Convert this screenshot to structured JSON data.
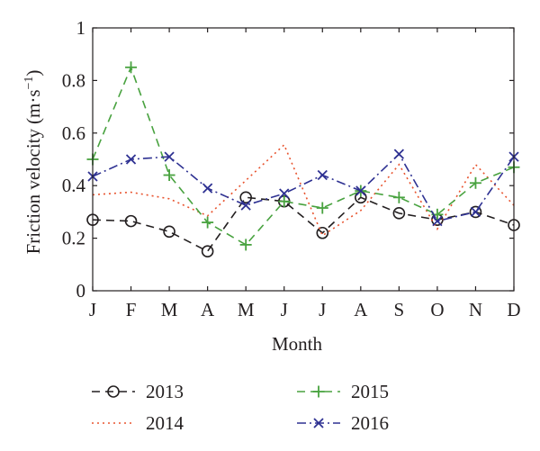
{
  "chart_data": {
    "type": "line",
    "categories": [
      "J",
      "F",
      "M",
      "A",
      "M",
      "J",
      "J",
      "A",
      "S",
      "O",
      "N",
      "D"
    ],
    "xlabel": "Month",
    "ylabel": "Friction velocity",
    "ylabel_unit_prefix": "(m·s",
    "ylabel_unit_exp": "−1",
    "ylabel_unit_suffix": ")",
    "ylim": [
      0,
      1
    ],
    "yticks": [
      "0",
      "0.2",
      "0.4",
      "0.6",
      "0.8",
      "1"
    ],
    "grid": false,
    "legend_position": "bottom",
    "series": [
      {
        "name": "2013",
        "color": "#231f20",
        "dash": "dashed",
        "marker": "circle",
        "values": [
          0.27,
          0.265,
          0.225,
          0.15,
          0.355,
          0.34,
          0.22,
          0.355,
          0.295,
          0.27,
          0.3,
          0.25
        ]
      },
      {
        "name": "2014",
        "color": "#e8532e",
        "dash": "dotted",
        "marker": "none",
        "values": [
          0.365,
          0.375,
          0.35,
          0.285,
          0.42,
          0.555,
          0.21,
          0.305,
          0.48,
          0.235,
          0.48,
          0.325
        ]
      },
      {
        "name": "2015",
        "color": "#48a23f",
        "dash": "dashed",
        "marker": "plus",
        "values": [
          0.5,
          0.85,
          0.44,
          0.26,
          0.175,
          0.34,
          0.315,
          0.38,
          0.355,
          0.29,
          0.41,
          0.47
        ]
      },
      {
        "name": "2016",
        "color": "#2e3192",
        "dash": "dashdot",
        "marker": "x",
        "values": [
          0.435,
          0.5,
          0.51,
          0.39,
          0.325,
          0.37,
          0.44,
          0.38,
          0.52,
          0.265,
          0.3,
          0.51
        ]
      }
    ]
  }
}
